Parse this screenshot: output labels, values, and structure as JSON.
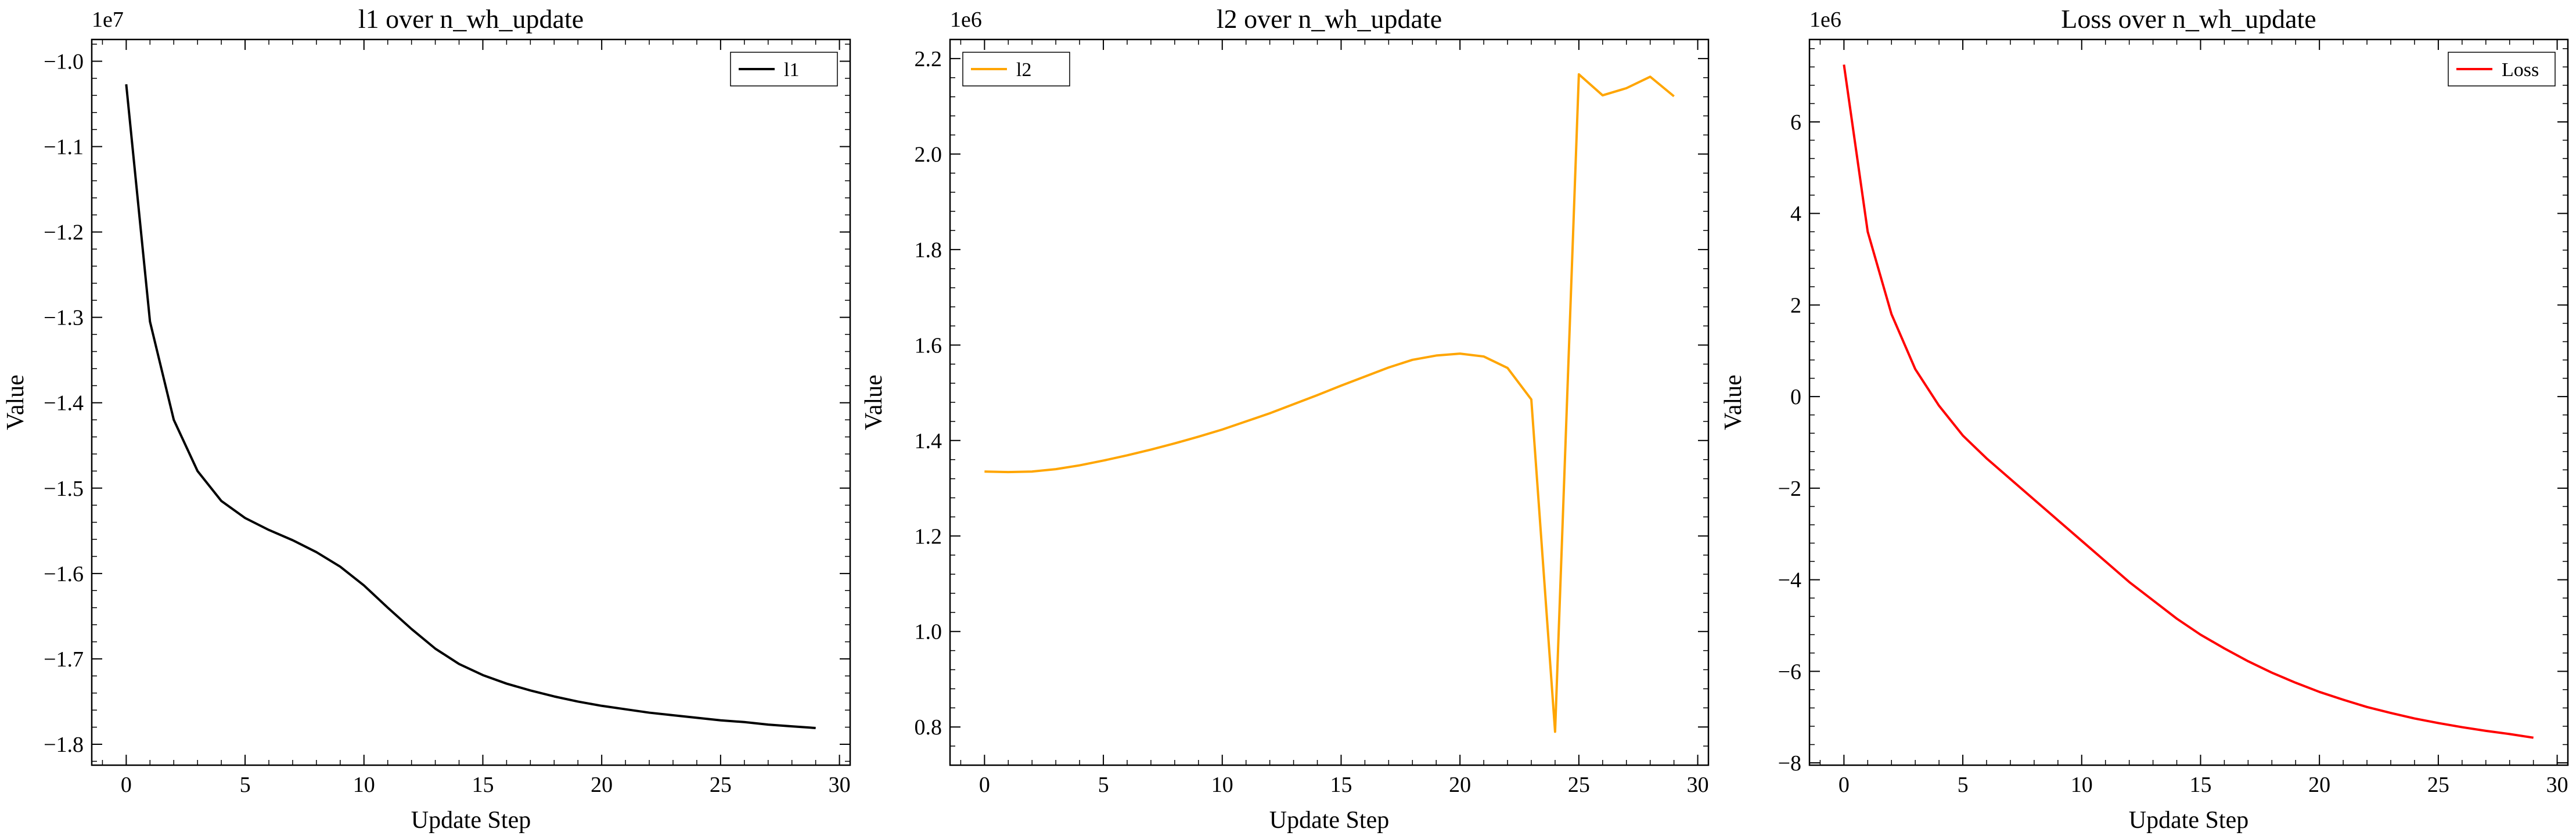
{
  "chart_data": [
    {
      "type": "line",
      "title": "l1 over n_wh_update",
      "xlabel": "Update Step",
      "ylabel": "Value",
      "offset_text": "1e7",
      "xlim": [
        -1.45,
        30.45
      ],
      "ylim": [
        -1.8245,
        -0.9745
      ],
      "xticks": [
        0,
        5,
        10,
        15,
        20,
        25,
        30
      ],
      "xtick_labels": [
        "0",
        "5",
        "10",
        "15",
        "20",
        "25",
        "30"
      ],
      "yticks": [
        -1.8,
        -1.7,
        -1.6,
        -1.5,
        -1.4,
        -1.3,
        -1.2,
        -1.1,
        -1.0
      ],
      "ytick_labels": [
        "−1.8",
        "−1.7",
        "−1.6",
        "−1.5",
        "−1.4",
        "−1.3",
        "−1.2",
        "−1.1",
        "−1.0"
      ],
      "legend_loc": "upper right",
      "grid": false,
      "series": [
        {
          "name": "l1",
          "color": "#000000",
          "x": [
            0,
            1,
            2,
            3,
            4,
            5,
            6,
            7,
            8,
            9,
            10,
            11,
            12,
            13,
            14,
            15,
            16,
            17,
            18,
            19,
            20,
            21,
            22,
            23,
            24,
            25,
            26,
            27,
            28,
            29
          ],
          "y": [
            -1.027,
            -1.305,
            -1.42,
            -1.48,
            -1.515,
            -1.535,
            -1.549,
            -1.561,
            -1.575,
            -1.592,
            -1.614,
            -1.64,
            -1.665,
            -1.688,
            -1.706,
            -1.719,
            -1.729,
            -1.737,
            -1.744,
            -1.75,
            -1.755,
            -1.759,
            -1.763,
            -1.766,
            -1.769,
            -1.772,
            -1.774,
            -1.777,
            -1.779,
            -1.781
          ]
        }
      ]
    },
    {
      "type": "line",
      "title": "l2 over n_wh_update",
      "xlabel": "Update Step",
      "ylabel": "Value",
      "offset_text": "1e6",
      "xlim": [
        -1.45,
        30.45
      ],
      "ylim": [
        0.72,
        2.24
      ],
      "xticks": [
        0,
        5,
        10,
        15,
        20,
        25,
        30
      ],
      "xtick_labels": [
        "0",
        "5",
        "10",
        "15",
        "20",
        "25",
        "30"
      ],
      "yticks": [
        0.8,
        1.0,
        1.2,
        1.4,
        1.6,
        1.8,
        2.0,
        2.2
      ],
      "ytick_labels": [
        "0.8",
        "1.0",
        "1.2",
        "1.4",
        "1.6",
        "1.8",
        "2.0",
        "2.2"
      ],
      "legend_loc": "upper left",
      "grid": false,
      "series": [
        {
          "name": "l2",
          "color": "#ffa500",
          "x": [
            0,
            1,
            2,
            3,
            4,
            5,
            6,
            7,
            8,
            9,
            10,
            11,
            12,
            13,
            14,
            15,
            16,
            17,
            18,
            19,
            20,
            21,
            22,
            23,
            24,
            25,
            26,
            27,
            28,
            29
          ],
          "y": [
            1.335,
            1.334,
            1.335,
            1.34,
            1.348,
            1.358,
            1.369,
            1.381,
            1.394,
            1.408,
            1.423,
            1.44,
            1.457,
            1.476,
            1.495,
            1.515,
            1.534,
            1.553,
            1.569,
            1.578,
            1.582,
            1.576,
            1.552,
            1.486,
            0.79,
            2.167,
            2.123,
            2.138,
            2.162,
            2.121
          ]
        }
      ]
    },
    {
      "type": "line",
      "title": "Loss over n_wh_update",
      "xlabel": "Update Step",
      "ylabel": "Value",
      "offset_text": "1e6",
      "xlim": [
        -1.45,
        30.45
      ],
      "ylim": [
        -8.05,
        7.8
      ],
      "xticks": [
        0,
        5,
        10,
        15,
        20,
        25,
        30
      ],
      "xtick_labels": [
        "0",
        "5",
        "10",
        "15",
        "20",
        "25",
        "30"
      ],
      "yticks": [
        -8,
        -6,
        -4,
        -2,
        0,
        2,
        4,
        6
      ],
      "ytick_labels": [
        "−8",
        "−6",
        "−4",
        "−2",
        "0",
        "2",
        "4",
        "6"
      ],
      "legend_loc": "upper right",
      "grid": false,
      "series": [
        {
          "name": "Loss",
          "color": "#ff0000",
          "x": [
            0,
            1,
            2,
            3,
            4,
            5,
            6,
            7,
            8,
            9,
            10,
            11,
            12,
            13,
            14,
            15,
            16,
            17,
            18,
            19,
            20,
            21,
            22,
            23,
            24,
            25,
            26,
            27,
            28,
            29
          ],
          "y": [
            7.25,
            3.6,
            1.8,
            0.6,
            -0.2,
            -0.85,
            -1.35,
            -1.8,
            -2.25,
            -2.7,
            -3.15,
            -3.6,
            -4.05,
            -4.45,
            -4.85,
            -5.2,
            -5.5,
            -5.78,
            -6.03,
            -6.25,
            -6.45,
            -6.62,
            -6.78,
            -6.91,
            -7.03,
            -7.13,
            -7.22,
            -7.3,
            -7.37,
            -7.45
          ]
        }
      ]
    }
  ]
}
